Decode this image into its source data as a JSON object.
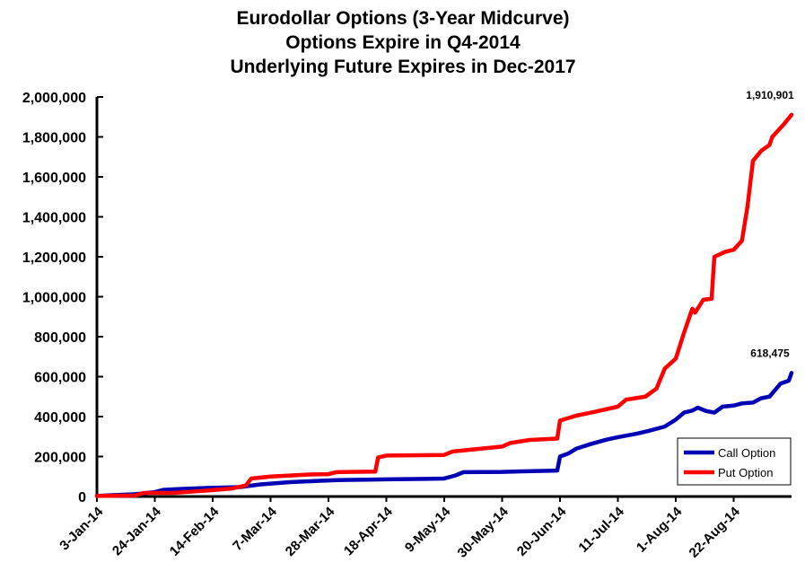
{
  "chart_data": {
    "type": "line",
    "title_lines": [
      "Eurodollar Options (3-Year Midcurve)",
      "Options Expire in Q4-2014",
      "Underlying Future Expires in Dec-2017"
    ],
    "xlabel": "",
    "ylabel": "",
    "x_range": [
      "2014-01-03",
      "2014-09-12"
    ],
    "ylim": [
      0,
      2000000
    ],
    "y_ticks": [
      0,
      200000,
      400000,
      600000,
      800000,
      1000000,
      1200000,
      1400000,
      1600000,
      1800000,
      2000000
    ],
    "y_tick_labels": [
      "0",
      "200,000",
      "400,000",
      "600,000",
      "800,000",
      "1,000,000",
      "1,200,000",
      "1,400,000",
      "1,600,000",
      "1,800,000",
      "2,000,000"
    ],
    "x_ticks": [
      "2014-01-03",
      "2014-01-24",
      "2014-02-14",
      "2014-03-07",
      "2014-03-28",
      "2014-04-18",
      "2014-05-09",
      "2014-05-30",
      "2014-06-20",
      "2014-07-11",
      "2014-08-01",
      "2014-08-22"
    ],
    "x_tick_labels": [
      "3-Jan-14",
      "24-Jan-14",
      "14-Feb-14",
      "7-Mar-14",
      "28-Mar-14",
      "18-Apr-14",
      "9-May-14",
      "30-May-14",
      "20-Jun-14",
      "11-Jul-14",
      "1-Aug-14",
      "22-Aug-14"
    ],
    "grid": false,
    "legend_position": "bottom-right",
    "series": [
      {
        "name": "Call Option",
        "color": "#0000b4",
        "points": [
          [
            "2014-01-03",
            3000
          ],
          [
            "2014-01-17",
            12000
          ],
          [
            "2014-01-24",
            22000
          ],
          [
            "2014-01-27",
            33000
          ],
          [
            "2014-02-03",
            38000
          ],
          [
            "2014-02-14",
            44000
          ],
          [
            "2014-02-24",
            47000
          ],
          [
            "2014-03-03",
            60000
          ],
          [
            "2014-03-14",
            72000
          ],
          [
            "2014-03-24",
            78000
          ],
          [
            "2014-03-31",
            82000
          ],
          [
            "2014-04-11",
            84000
          ],
          [
            "2014-04-18",
            86000
          ],
          [
            "2014-05-02",
            88000
          ],
          [
            "2014-05-09",
            90000
          ],
          [
            "2014-05-13",
            105000
          ],
          [
            "2014-05-16",
            122000
          ],
          [
            "2014-05-30",
            123000
          ],
          [
            "2014-06-06",
            126000
          ],
          [
            "2014-06-19",
            130000
          ],
          [
            "2014-06-20",
            200000
          ],
          [
            "2014-06-23",
            215000
          ],
          [
            "2014-06-26",
            240000
          ],
          [
            "2014-07-01",
            262000
          ],
          [
            "2014-07-07",
            285000
          ],
          [
            "2014-07-11",
            297000
          ],
          [
            "2014-07-18",
            315000
          ],
          [
            "2014-07-22",
            328000
          ],
          [
            "2014-07-28",
            350000
          ],
          [
            "2014-08-01",
            385000
          ],
          [
            "2014-08-04",
            420000
          ],
          [
            "2014-08-07",
            430000
          ],
          [
            "2014-08-09",
            445000
          ],
          [
            "2014-08-12",
            428000
          ],
          [
            "2014-08-15",
            420000
          ],
          [
            "2014-08-18",
            450000
          ],
          [
            "2014-08-22",
            455000
          ],
          [
            "2014-08-25",
            466000
          ],
          [
            "2014-08-29",
            470000
          ],
          [
            "2014-09-01",
            492000
          ],
          [
            "2014-09-04",
            500000
          ],
          [
            "2014-09-08",
            565000
          ],
          [
            "2014-09-11",
            580000
          ],
          [
            "2014-09-12",
            618475
          ]
        ]
      },
      {
        "name": "Put Option",
        "color": "#ff0000",
        "points": [
          [
            "2014-01-03",
            3000
          ],
          [
            "2014-01-17",
            5000
          ],
          [
            "2014-01-20",
            18000
          ],
          [
            "2014-01-31",
            18000
          ],
          [
            "2014-02-07",
            25000
          ],
          [
            "2014-02-14",
            32000
          ],
          [
            "2014-02-21",
            40000
          ],
          [
            "2014-02-26",
            55000
          ],
          [
            "2014-02-28",
            90000
          ],
          [
            "2014-03-07",
            100000
          ],
          [
            "2014-03-14",
            105000
          ],
          [
            "2014-03-21",
            110000
          ],
          [
            "2014-03-28",
            112000
          ],
          [
            "2014-03-31",
            122000
          ],
          [
            "2014-04-14",
            125000
          ],
          [
            "2014-04-15",
            195000
          ],
          [
            "2014-04-18",
            205000
          ],
          [
            "2014-05-09",
            208000
          ],
          [
            "2014-05-12",
            225000
          ],
          [
            "2014-05-19",
            235000
          ],
          [
            "2014-05-30",
            250000
          ],
          [
            "2014-06-02",
            268000
          ],
          [
            "2014-06-09",
            283000
          ],
          [
            "2014-06-19",
            290000
          ],
          [
            "2014-06-20",
            380000
          ],
          [
            "2014-06-26",
            405000
          ],
          [
            "2014-07-03",
            425000
          ],
          [
            "2014-07-11",
            450000
          ],
          [
            "2014-07-14",
            485000
          ],
          [
            "2014-07-21",
            500000
          ],
          [
            "2014-07-25",
            540000
          ],
          [
            "2014-07-28",
            640000
          ],
          [
            "2014-08-01",
            690000
          ],
          [
            "2014-08-04",
            820000
          ],
          [
            "2014-08-07",
            940000
          ],
          [
            "2014-08-08",
            920000
          ],
          [
            "2014-08-11",
            985000
          ],
          [
            "2014-08-14",
            990000
          ],
          [
            "2014-08-15",
            1200000
          ],
          [
            "2014-08-19",
            1225000
          ],
          [
            "2014-08-22",
            1235000
          ],
          [
            "2014-08-25",
            1280000
          ],
          [
            "2014-08-27",
            1450000
          ],
          [
            "2014-08-29",
            1680000
          ],
          [
            "2014-09-01",
            1730000
          ],
          [
            "2014-09-04",
            1760000
          ],
          [
            "2014-09-05",
            1800000
          ],
          [
            "2014-09-09",
            1860000
          ],
          [
            "2014-09-12",
            1910901
          ]
        ]
      }
    ],
    "data_labels": [
      {
        "series": "Put Option",
        "x": "2014-09-12",
        "y": 1910901,
        "text": "1,910,901"
      },
      {
        "series": "Call Option",
        "x": "2014-09-12",
        "y": 618475,
        "text": "618,475"
      }
    ]
  }
}
